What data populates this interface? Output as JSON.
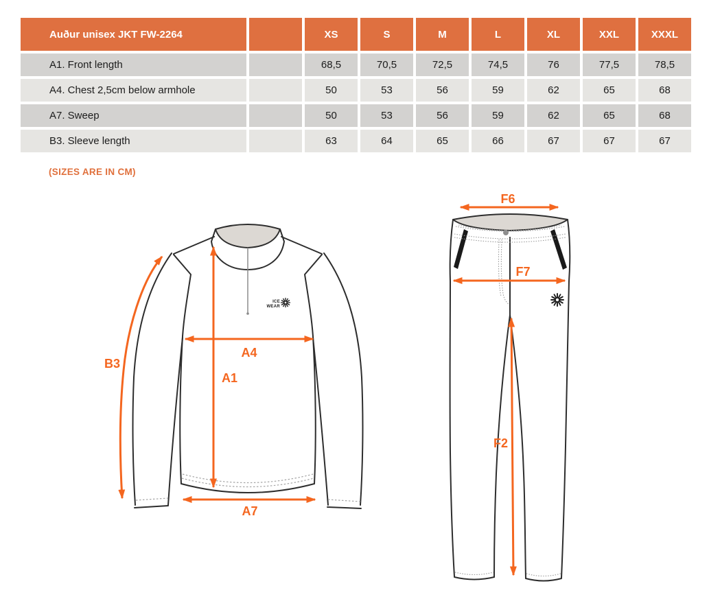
{
  "table": {
    "title": "Auður unisex JKT FW-2264",
    "sizes": [
      "XS",
      "S",
      "M",
      "L",
      "XL",
      "XXL",
      "XXXL"
    ],
    "rows": [
      {
        "label": "A1. Front length",
        "values": [
          "68,5",
          "70,5",
          "72,5",
          "74,5",
          "76",
          "77,5",
          "78,5"
        ]
      },
      {
        "label": "A4. Chest 2,5cm below armhole",
        "values": [
          "50",
          "53",
          "56",
          "59",
          "62",
          "65",
          "68"
        ]
      },
      {
        "label": "A7. Sweep",
        "values": [
          "50",
          "53",
          "56",
          "59",
          "62",
          "65",
          "68"
        ]
      },
      {
        "label": "B3. Sleeve length",
        "values": [
          "63",
          "64",
          "65",
          "66",
          "67",
          "67",
          "67"
        ]
      }
    ]
  },
  "note": "(SIZES ARE IN CM)",
  "diagrams": {
    "jacket": {
      "brand_line1": "ICE",
      "brand_line2": "WEAR",
      "labels": {
        "a4": "A4",
        "a1": "A1",
        "a7": "A7",
        "b3": "B3"
      }
    },
    "pants": {
      "labels": {
        "f6": "F6",
        "f7": "F7",
        "f2": "F2"
      }
    }
  },
  "colors": {
    "header_orange": "#df7040",
    "note_orange": "#e0703c",
    "arrow_orange": "#f4661f",
    "row_dark": "#d3d2d0",
    "row_light": "#e6e5e2",
    "sketch_line": "#2d2d2d",
    "fabric_inner_gray": "#dcd8d3"
  },
  "chart_data": {
    "type": "table",
    "title": "Auður unisex JKT FW-2264",
    "unit": "cm",
    "columns": [
      "XS",
      "S",
      "M",
      "L",
      "XL",
      "XXL",
      "XXXL"
    ],
    "rows": [
      {
        "label": "A1. Front length",
        "values": [
          68.5,
          70.5,
          72.5,
          74.5,
          76,
          77.5,
          78.5
        ]
      },
      {
        "label": "A4. Chest 2,5cm below armhole",
        "values": [
          50,
          53,
          56,
          59,
          62,
          65,
          68
        ]
      },
      {
        "label": "A7. Sweep",
        "values": [
          50,
          53,
          56,
          59,
          62,
          65,
          68
        ]
      },
      {
        "label": "B3. Sleeve length",
        "values": [
          63,
          64,
          65,
          66,
          67,
          67,
          67
        ]
      }
    ]
  }
}
